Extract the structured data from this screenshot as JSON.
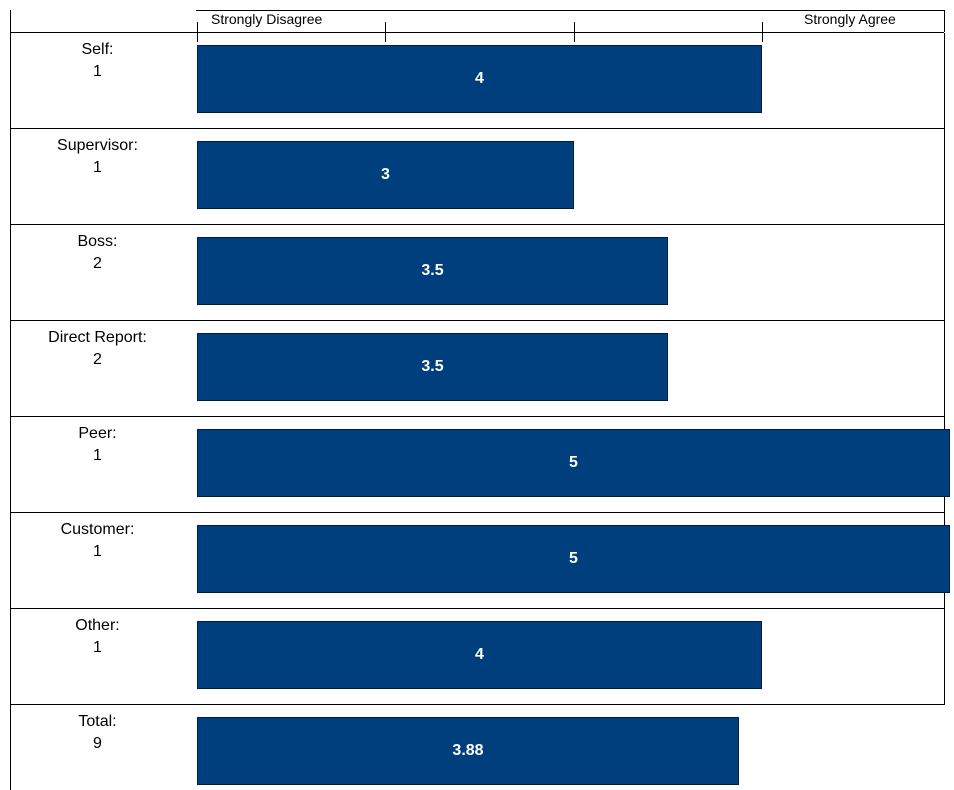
{
  "chart_data": {
    "type": "bar",
    "orientation": "horizontal",
    "scale_labels": {
      "low": "Strongly Disagree",
      "high": "Strongly Agree"
    },
    "xlim": [
      1,
      5
    ],
    "categories": [
      {
        "label": "Self:",
        "count": "1",
        "value": 4,
        "value_label": "4"
      },
      {
        "label": "Supervisor:",
        "count": "1",
        "value": 3,
        "value_label": "3"
      },
      {
        "label": "Boss:",
        "count": "2",
        "value": 3.5,
        "value_label": "3.5"
      },
      {
        "label": "Direct Report:",
        "count": "2",
        "value": 3.5,
        "value_label": "3.5"
      },
      {
        "label": "Peer:",
        "count": "1",
        "value": 5,
        "value_label": "5"
      },
      {
        "label": "Customer:",
        "count": "1",
        "value": 5,
        "value_label": "5"
      },
      {
        "label": "Other:",
        "count": "1",
        "value": 4,
        "value_label": "4"
      },
      {
        "label": "Total:",
        "count": "9",
        "value": 3.88,
        "value_label": "3.88"
      }
    ],
    "bar_color": "#003f7d",
    "grid": false
  }
}
